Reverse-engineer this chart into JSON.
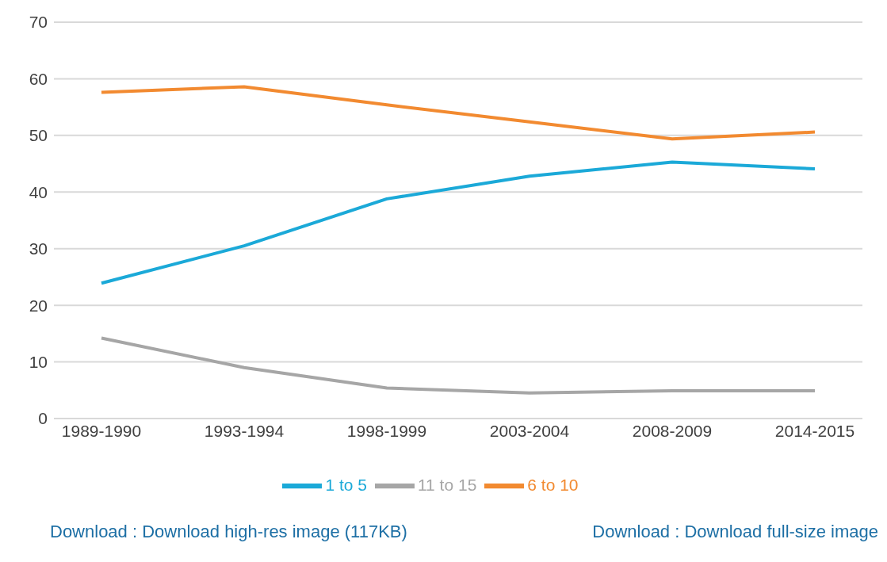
{
  "chart_data": {
    "type": "line",
    "categories": [
      "1989-1990",
      "1993-1994",
      "1998-1999",
      "2003-2004",
      "2008-2009",
      "2014-2015"
    ],
    "series": [
      {
        "name": "1 to 5",
        "color": "#1ba9d8",
        "values": [
          23.9,
          30.5,
          38.8,
          42.8,
          45.3,
          44.1
        ]
      },
      {
        "name": "6 to 10",
        "color": "#f28a30",
        "values": [
          57.6,
          58.6,
          55.4,
          52.4,
          49.4,
          50.6
        ]
      },
      {
        "name": "11 to 15",
        "color": "#a6a6a6",
        "values": [
          14.2,
          9.0,
          5.4,
          4.5,
          4.9,
          4.9
        ]
      }
    ],
    "ylim": [
      0,
      70
    ],
    "yticks": [
      0,
      10,
      20,
      30,
      40,
      50,
      60,
      70
    ],
    "grid": "y",
    "legend": "bottom",
    "marker": "none",
    "line_style": "solid",
    "annotations": [
      "Download : Download high-res image (117KB)",
      "Download : Download full-size image"
    ]
  }
}
